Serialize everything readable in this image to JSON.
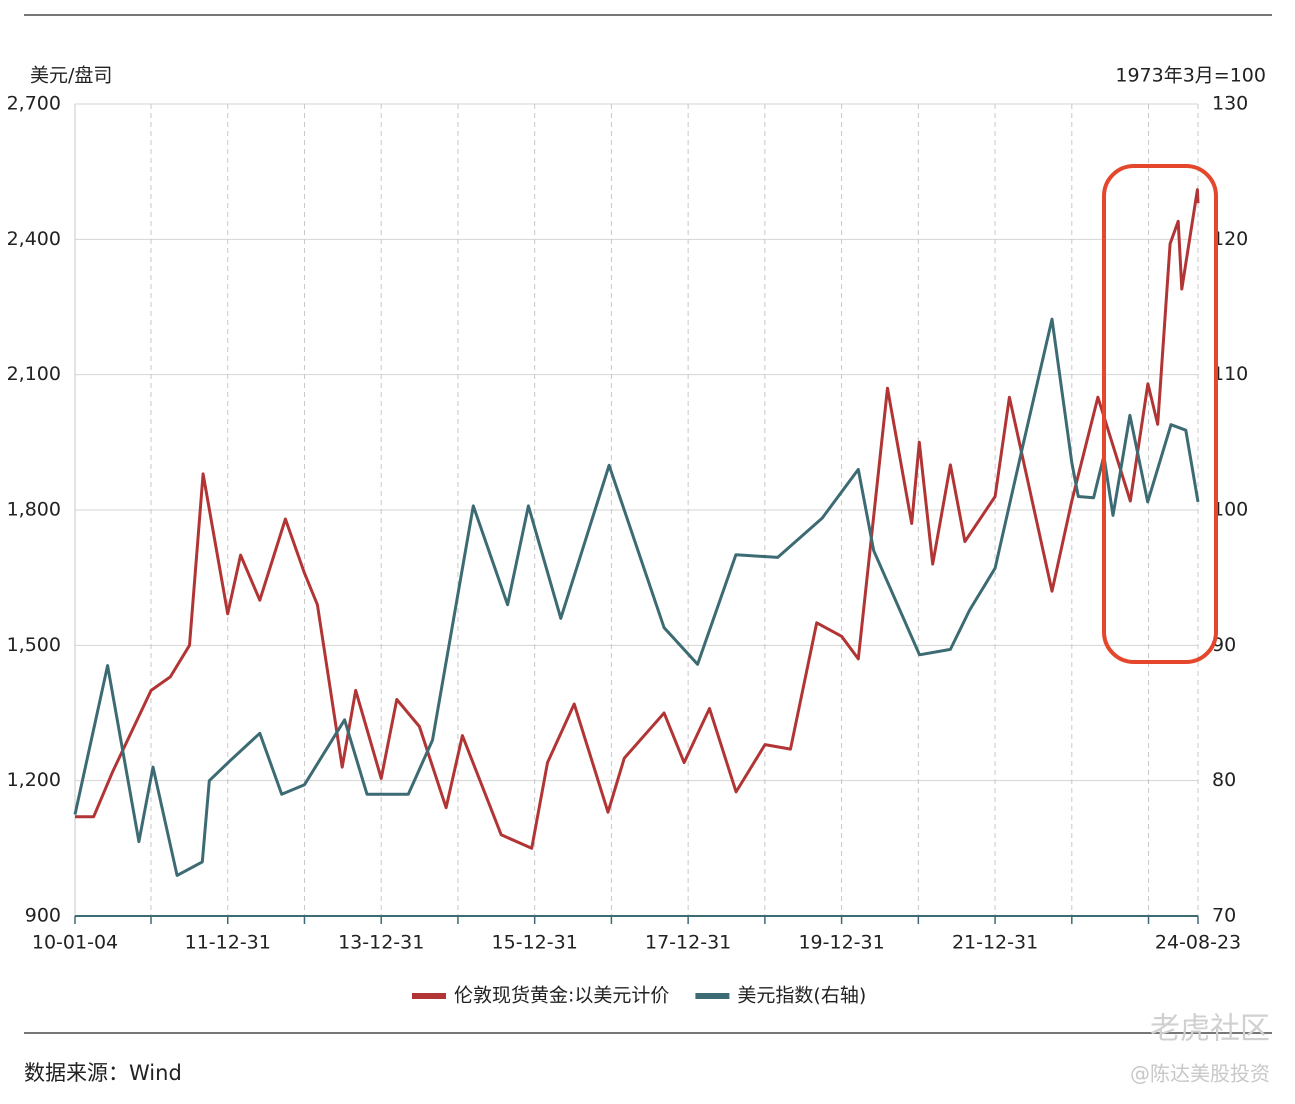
{
  "chart_data": {
    "type": "line",
    "y_label": "美元/盘司",
    "y2_label": "1973年3月=100",
    "source": "数据来源：Wind",
    "watermark": "老虎社区",
    "watermark_author": "@陈达美股投资",
    "xlim": [
      "10-01-04",
      "24-08-23"
    ],
    "xticks": [
      "10-01-04",
      "11-12-31",
      "13-12-31",
      "15-12-31",
      "17-12-31",
      "19-12-31",
      "21-12-31",
      "24-08-23"
    ],
    "xgrid": [
      "10-12-31",
      "11-12-31",
      "12-12-31",
      "13-12-31",
      "14-12-31",
      "15-12-31",
      "16-12-31",
      "17-12-31",
      "18-12-31",
      "19-12-31",
      "20-12-31",
      "21-12-31",
      "22-12-31",
      "23-12-31",
      "24-08-23"
    ],
    "ylim": [
      900,
      2700
    ],
    "yticks": [
      {
        "value": 900,
        "label": "900"
      },
      {
        "value": 1200,
        "label": "1,200"
      },
      {
        "value": 1500,
        "label": "1,500"
      },
      {
        "value": 1800,
        "label": "1,800"
      },
      {
        "value": 2100,
        "label": "2,100"
      },
      {
        "value": 2400,
        "label": "2,400"
      },
      {
        "value": 2700,
        "label": "2,700"
      }
    ],
    "y2lim": [
      70,
      130
    ],
    "y2ticks": [
      70,
      80,
      90,
      100,
      110,
      120,
      130
    ],
    "grid": true,
    "legend": "bottom",
    "series": [
      {
        "name": "伦敦现货黄金:以美元计价",
        "color": "#b23535",
        "x": [
          "10-01-04",
          "10-04-01",
          "10-07-01",
          "10-10-01",
          "11-01-01",
          "11-04-01",
          "11-07-01",
          "11-09-05",
          "11-12-31",
          "12-03-01",
          "12-06-01",
          "12-10-01",
          "12-12-31",
          "13-03-01",
          "13-06-28",
          "13-09-01",
          "13-12-31",
          "14-03-14",
          "14-06-30",
          "14-11-05",
          "15-01-22",
          "15-07-24",
          "15-12-17",
          "16-03-01",
          "16-07-06",
          "16-12-15",
          "17-03-01",
          "17-09-08",
          "17-12-12",
          "18-04-11",
          "18-08-16",
          "19-01-01",
          "19-05-01",
          "19-09-04",
          "19-12-31",
          "20-03-19",
          "20-08-06",
          "20-11-30",
          "21-01-05",
          "21-03-08",
          "21-06-01",
          "21-08-09",
          "21-12-31",
          "22-03-08",
          "22-09-28",
          "22-12-31",
          "23-05-03",
          "23-10-05",
          "23-12-28",
          "24-02-14",
          "24-04-12",
          "24-05-20",
          "24-06-07",
          "24-08-20",
          "24-08-23"
        ],
        "values": [
          1120,
          1120,
          1220,
          1310,
          1400,
          1430,
          1500,
          1880,
          1570,
          1700,
          1600,
          1780,
          1660,
          1590,
          1230,
          1400,
          1205,
          1380,
          1320,
          1140,
          1300,
          1080,
          1050,
          1240,
          1370,
          1130,
          1250,
          1350,
          1240,
          1360,
          1175,
          1280,
          1270,
          1550,
          1520,
          1470,
          2070,
          1770,
          1950,
          1680,
          1900,
          1730,
          1830,
          2050,
          1620,
          1820,
          2050,
          1820,
          2080,
          1990,
          2390,
          2440,
          2290,
          2510,
          2480
        ]
      },
      {
        "name": "美元指数(右轴)",
        "color": "#3d6b73",
        "axis": "y2",
        "x": [
          "10-01-04",
          "10-06-07",
          "10-11-04",
          "11-01-10",
          "11-05-03",
          "11-09-01",
          "11-10-04",
          "12-01-13",
          "12-06-01",
          "12-09-14",
          "12-12-31",
          "13-07-09",
          "13-10-24",
          "14-05-08",
          "14-09-01",
          "15-03-13",
          "15-08-24",
          "15-12-01",
          "16-05-03",
          "16-12-20",
          "17-09-08",
          "18-02-15",
          "18-08-15",
          "19-03-01",
          "19-09-30",
          "20-03-19",
          "20-06-01",
          "21-01-06",
          "21-06-01",
          "21-09-01",
          "21-12-31",
          "22-05-12",
          "22-09-28",
          "22-12-31",
          "23-02-01",
          "23-04-13",
          "23-06-01",
          "23-07-14",
          "23-10-03",
          "23-12-27",
          "24-04-16",
          "24-06-26",
          "24-08-23"
        ],
        "values": [
          77.5,
          88.5,
          75.5,
          81,
          73,
          74,
          80,
          81.5,
          83.5,
          79,
          79.7,
          84.5,
          79,
          79,
          83,
          100.3,
          93,
          100.3,
          92,
          103.3,
          91.3,
          88.6,
          96.7,
          96.5,
          99.4,
          103,
          97,
          89.3,
          89.7,
          92.6,
          95.7,
          104.8,
          114.1,
          103.5,
          101,
          100.9,
          104,
          99.6,
          107,
          100.6,
          106.3,
          105.9,
          100.6
        ]
      }
    ]
  }
}
